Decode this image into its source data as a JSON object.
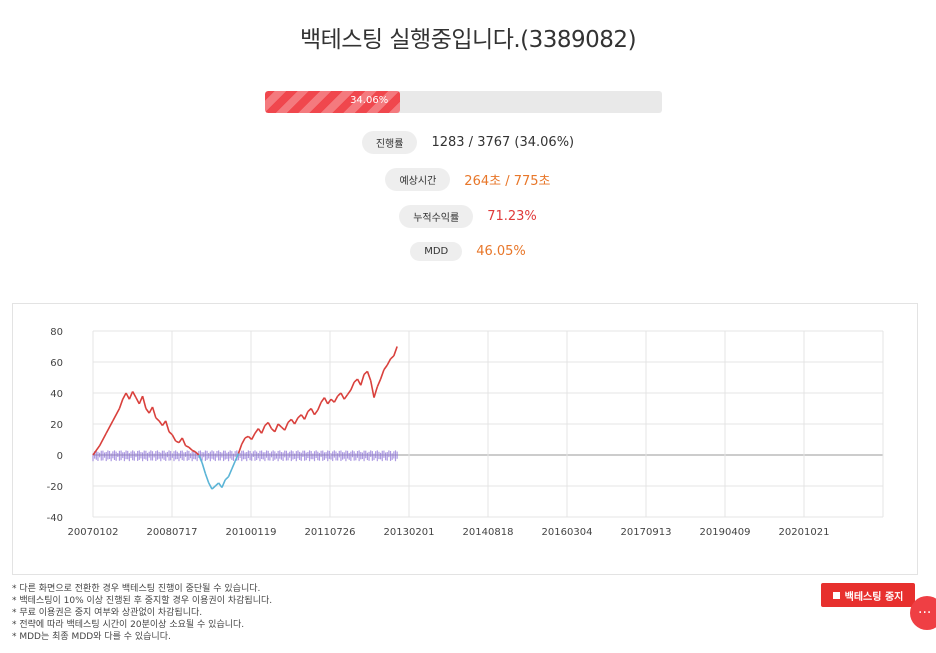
{
  "title": "백테스팅 실행중입니다.(3389082)",
  "progress": {
    "fraction": 0.3406,
    "label": "34.06%"
  },
  "stats": {
    "progress": {
      "label": "진행률",
      "value": "1283 / 3767 (34.06%)"
    },
    "time": {
      "label": "예상시간",
      "value": "264초 / 775초"
    },
    "return": {
      "label": "누적수익률",
      "value": "71.23%"
    },
    "mdd": {
      "label": "MDD",
      "value": "46.05%"
    }
  },
  "colors": {
    "accent": "#f0474d",
    "orange": "#e8772a",
    "red": "#e03a3a",
    "line": "#d9403c",
    "drawdown": "#5ab4d6",
    "bars": "#8a6fd6"
  },
  "chart_data": {
    "type": "line",
    "ylim": [
      -40,
      80
    ],
    "yticks": [
      "80",
      "60",
      "40",
      "20",
      "0",
      "-20",
      "-40"
    ],
    "xticks": [
      "20070102",
      "20080717",
      "20100119",
      "20110726",
      "20130201",
      "20140818",
      "20160304",
      "20170913",
      "20190409",
      "20201021"
    ],
    "series": [
      {
        "values": [
          [
            0,
            0
          ],
          [
            2,
            6
          ],
          [
            4,
            14
          ],
          [
            6,
            22
          ],
          [
            8,
            30
          ],
          [
            9,
            36
          ],
          [
            10,
            40
          ],
          [
            11,
            36
          ],
          [
            12,
            41
          ],
          [
            13,
            37
          ],
          [
            14,
            33
          ],
          [
            15,
            38
          ],
          [
            16,
            30
          ],
          [
            17,
            27
          ],
          [
            18,
            31
          ],
          [
            19,
            24
          ],
          [
            20,
            22
          ],
          [
            21,
            19
          ],
          [
            22,
            22
          ],
          [
            23,
            15
          ],
          [
            24,
            13
          ],
          [
            25,
            9
          ],
          [
            26,
            8
          ],
          [
            27,
            11
          ],
          [
            28,
            6
          ],
          [
            29,
            5
          ],
          [
            30,
            3
          ],
          [
            31,
            2
          ],
          [
            32,
            0
          ],
          [
            33,
            -5
          ],
          [
            34,
            -12
          ],
          [
            35,
            -18
          ],
          [
            36,
            -22
          ],
          [
            37,
            -20
          ],
          [
            38,
            -18
          ],
          [
            39,
            -21
          ],
          [
            40,
            -16
          ],
          [
            41,
            -14
          ],
          [
            42,
            -9
          ],
          [
            43,
            -4
          ],
          [
            44,
            1
          ],
          [
            45,
            7
          ],
          [
            46,
            11
          ],
          [
            47,
            12
          ],
          [
            48,
            10
          ],
          [
            49,
            14
          ],
          [
            50,
            17
          ],
          [
            51,
            14
          ],
          [
            52,
            19
          ],
          [
            53,
            21
          ],
          [
            54,
            17
          ],
          [
            55,
            15
          ],
          [
            56,
            20
          ],
          [
            57,
            18
          ],
          [
            58,
            16
          ],
          [
            59,
            21
          ],
          [
            60,
            23
          ],
          [
            61,
            20
          ],
          [
            62,
            24
          ],
          [
            63,
            26
          ],
          [
            64,
            23
          ],
          [
            65,
            28
          ],
          [
            66,
            30
          ],
          [
            67,
            26
          ],
          [
            68,
            29
          ],
          [
            69,
            34
          ],
          [
            70,
            37
          ],
          [
            71,
            33
          ],
          [
            72,
            36
          ],
          [
            73,
            34
          ],
          [
            74,
            38
          ],
          [
            75,
            40
          ],
          [
            76,
            36
          ],
          [
            77,
            39
          ],
          [
            78,
            42
          ],
          [
            79,
            47
          ],
          [
            80,
            49
          ],
          [
            81,
            45
          ],
          [
            82,
            52
          ],
          [
            83,
            54
          ],
          [
            84,
            48
          ],
          [
            85,
            37
          ],
          [
            86,
            44
          ],
          [
            87,
            49
          ],
          [
            88,
            55
          ],
          [
            89,
            58
          ],
          [
            90,
            62
          ],
          [
            91,
            64
          ],
          [
            92,
            70
          ]
        ]
      }
    ],
    "drawdown_range": [
      -23,
      0
    ],
    "activity_band": [
      -4,
      3
    ]
  },
  "notes": [
    "* 다른 화면으로 전환한 경우 백테스팅 진행이 중단될 수 있습니다.",
    "* 백테스팅이 10% 이상 진행된 후 중지할 경우 이용권이 차감됩니다.",
    "* 무료 이용권은 중지 여부와 상관없이 차감됩니다.",
    "* 전략에 따라 백테스팅 시간이 20분이상 소요될 수 있습니다.",
    "* MDD는 최종 MDD와 다를 수 있습니다."
  ],
  "stop_button": {
    "label": "백테스팅 중지"
  },
  "fab": {
    "label": "···"
  }
}
